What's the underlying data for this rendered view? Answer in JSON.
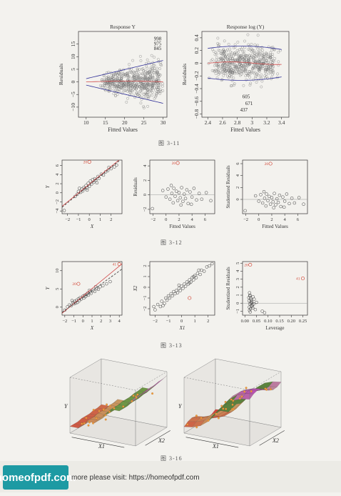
{
  "figures": [
    {
      "caption": "图 3-11"
    },
    {
      "caption": "图 3-12"
    },
    {
      "caption": "图 3-13"
    },
    {
      "caption": "图 3-16"
    }
  ],
  "footer": {
    "logo_text": "homeofpdf.com",
    "link_text": "more please visit: https://homeofpdf.com"
  },
  "colors": {
    "points": "#777777",
    "smooth": "#d14a4a",
    "bound": "#333399",
    "highlight": "#d24a3a"
  },
  "chart_data": [
    {
      "id": "fig311a",
      "type": "scatter",
      "title": "Response Y",
      "xlabel": "Fitted Values",
      "ylabel": "Residuals",
      "xlim": [
        8,
        31
      ],
      "ylim": [
        -14,
        20
      ],
      "xticks": [
        10,
        15,
        20,
        25,
        30
      ],
      "yticks": [
        -10,
        -5,
        0,
        5,
        10,
        15
      ],
      "annotations": [
        {
          "text": "998",
          "x": 28.6,
          "y": 16.5
        },
        {
          "text": "975",
          "x": 28.6,
          "y": 14.5
        },
        {
          "text": "845",
          "x": 28.6,
          "y": 12.6
        }
      ],
      "pattern": "funnel",
      "n_points": 560,
      "x_range": [
        10,
        30
      ],
      "spread": [
        1.5,
        10
      ]
    },
    {
      "id": "fig311b",
      "type": "scatter",
      "title": "Response log (Y)",
      "xlabel": "Fitted Values",
      "ylabel": "Residuals",
      "xlim": [
        2.32,
        3.5
      ],
      "ylim": [
        -0.85,
        0.5
      ],
      "xticks": [
        2.4,
        2.6,
        2.8,
        3.0,
        3.2,
        3.4
      ],
      "yticks": [
        -0.8,
        -0.6,
        -0.4,
        -0.2,
        0.0,
        0.2,
        0.4
      ],
      "annotations": [
        {
          "text": "605",
          "x": 2.92,
          "y": -0.55
        },
        {
          "text": "671",
          "x": 2.96,
          "y": -0.66
        },
        {
          "text": "437",
          "x": 2.89,
          "y": -0.76
        }
      ],
      "pattern": "constant",
      "n_points": 560,
      "x_range": [
        2.4,
        3.4
      ],
      "spread": [
        0.3,
        0.3
      ]
    },
    {
      "id": "fig312a",
      "type": "scatter",
      "xlabel": "X",
      "ylabel": "Y",
      "xlim": [
        -2.5,
        3.0
      ],
      "ylim": [
        -4.6,
        7.2
      ],
      "xticks": [
        -2,
        -1,
        0,
        1,
        2
      ],
      "yticks": [
        -4,
        -2,
        0,
        2,
        4,
        6
      ],
      "points": [
        [
          -2.3,
          -3.9
        ],
        [
          -1.3,
          -0.8
        ],
        [
          -1.1,
          -0.3
        ],
        [
          -1.0,
          0.3
        ],
        [
          -0.8,
          0.1
        ],
        [
          -0.7,
          0.8
        ],
        [
          -0.6,
          0.4
        ],
        [
          -0.5,
          1.2
        ],
        [
          -0.4,
          0.9
        ],
        [
          -0.3,
          1.6
        ],
        [
          -0.2,
          1.1
        ],
        [
          -0.1,
          2.1
        ],
        [
          0.0,
          1.4
        ],
        [
          0.1,
          2.6
        ],
        [
          0.2,
          1.9
        ],
        [
          0.3,
          2.9
        ],
        [
          0.4,
          2.3
        ],
        [
          0.5,
          3.1
        ],
        [
          0.6,
          2.8
        ],
        [
          0.8,
          3.6
        ],
        [
          0.9,
          3.2
        ],
        [
          1.1,
          4.1
        ],
        [
          1.3,
          3.9
        ],
        [
          1.5,
          4.6
        ],
        [
          1.7,
          4.9
        ],
        [
          2.0,
          5.3
        ],
        [
          2.3,
          5.7
        ],
        [
          2.5,
          6.1
        ],
        [
          -0.9,
          1.0
        ],
        [
          0.7,
          2.2
        ],
        [
          1.8,
          5.6
        ],
        [
          -0.2,
          0.6
        ]
      ],
      "highlight": [
        {
          "label": "20",
          "x": 0.0,
          "y": 6.8
        }
      ],
      "lines": [
        {
          "style": "solid",
          "color": "#d14a4a",
          "intercept": 1.9,
          "slope": 1.95
        },
        {
          "style": "dashed",
          "color": "#333333",
          "intercept": 1.7,
          "slope": 1.95
        }
      ]
    },
    {
      "id": "fig312b",
      "type": "scatter",
      "xlabel": "Fitted Values",
      "ylabel": "Residuals",
      "xlim": [
        -2.5,
        7.5
      ],
      "ylim": [
        -2.6,
        4.8
      ],
      "xticks": [
        -2,
        0,
        2,
        4,
        6
      ],
      "yticks": [
        -2,
        0,
        2,
        4
      ],
      "points": [
        [
          -2.1,
          -1.9
        ],
        [
          -0.5,
          0.6
        ],
        [
          0.0,
          -0.3
        ],
        [
          0.3,
          0.8
        ],
        [
          0.6,
          -0.6
        ],
        [
          0.9,
          0.2
        ],
        [
          1.1,
          -1.1
        ],
        [
          1.2,
          0.9
        ],
        [
          1.4,
          -0.2
        ],
        [
          1.6,
          0.5
        ],
        [
          1.8,
          -0.8
        ],
        [
          2.0,
          0.3
        ],
        [
          2.2,
          -0.4
        ],
        [
          2.4,
          1.0
        ],
        [
          2.6,
          -0.9
        ],
        [
          2.8,
          0.1
        ],
        [
          3.0,
          -0.5
        ],
        [
          3.2,
          0.7
        ],
        [
          3.4,
          -1.2
        ],
        [
          3.7,
          0.4
        ],
        [
          4.0,
          -0.3
        ],
        [
          4.3,
          0.9
        ],
        [
          4.7,
          -0.7
        ],
        [
          5.1,
          0.2
        ],
        [
          5.5,
          -0.6
        ],
        [
          6.2,
          0.3
        ],
        [
          6.9,
          -0.8
        ],
        [
          0.8,
          1.3
        ],
        [
          2.3,
          -1.4
        ],
        [
          3.9,
          -1.3
        ]
      ],
      "highlight": [
        {
          "label": "20",
          "x": 1.8,
          "y": 4.4
        }
      ],
      "hline": 0
    },
    {
      "id": "fig312c",
      "type": "scatter",
      "xlabel": "Fitted Values",
      "ylabel": "Studentized Residuals",
      "xlim": [
        -2.5,
        7.5
      ],
      "ylim": [
        -2.4,
        6.6
      ],
      "xticks": [
        -2,
        0,
        2,
        4,
        6
      ],
      "yticks": [
        0,
        2,
        4,
        6
      ],
      "points": [
        [
          -2.1,
          -1.9
        ],
        [
          -0.5,
          0.6
        ],
        [
          0.0,
          -0.3
        ],
        [
          0.3,
          0.8
        ],
        [
          0.6,
          -0.6
        ],
        [
          0.9,
          0.2
        ],
        [
          1.1,
          -1.1
        ],
        [
          1.2,
          0.9
        ],
        [
          1.4,
          -0.2
        ],
        [
          1.6,
          0.5
        ],
        [
          1.8,
          -0.8
        ],
        [
          2.0,
          0.3
        ],
        [
          2.2,
          -0.4
        ],
        [
          2.4,
          1.0
        ],
        [
          2.6,
          -0.9
        ],
        [
          2.8,
          0.1
        ],
        [
          3.0,
          -0.5
        ],
        [
          3.2,
          0.7
        ],
        [
          3.4,
          -1.2
        ],
        [
          3.7,
          0.4
        ],
        [
          4.0,
          -0.3
        ],
        [
          4.3,
          0.9
        ],
        [
          4.7,
          -0.7
        ],
        [
          5.1,
          0.2
        ],
        [
          5.5,
          -0.6
        ],
        [
          6.2,
          0.3
        ],
        [
          6.9,
          -0.8
        ],
        [
          0.8,
          1.3
        ],
        [
          2.3,
          -1.4
        ],
        [
          3.9,
          -1.3
        ]
      ],
      "highlight": [
        {
          "label": "20",
          "x": 1.8,
          "y": 6.0
        }
      ],
      "hline": 0
    },
    {
      "id": "fig313a",
      "type": "scatter",
      "xlabel": "X",
      "ylabel": "Y",
      "xlim": [
        -2.3,
        4.3
      ],
      "ylim": [
        -2.2,
        12.5
      ],
      "xticks": [
        -2,
        -1,
        0,
        1,
        2,
        3,
        4
      ],
      "yticks": [
        0,
        5,
        10
      ],
      "points": [
        [
          -2.0,
          -0.8
        ],
        [
          -1.7,
          0.1
        ],
        [
          -1.5,
          0.6
        ],
        [
          -1.3,
          0.4
        ],
        [
          -1.1,
          1.3
        ],
        [
          -1.0,
          0.9
        ],
        [
          -0.9,
          1.6
        ],
        [
          -0.7,
          1.9
        ],
        [
          -0.6,
          1.3
        ],
        [
          -0.5,
          2.3
        ],
        [
          -0.4,
          1.8
        ],
        [
          -0.3,
          2.6
        ],
        [
          -0.2,
          2.2
        ],
        [
          0.0,
          3.0
        ],
        [
          0.1,
          2.5
        ],
        [
          0.2,
          3.3
        ],
        [
          0.3,
          2.9
        ],
        [
          0.4,
          3.5
        ],
        [
          0.5,
          3.8
        ],
        [
          0.6,
          3.3
        ],
        [
          0.8,
          4.2
        ],
        [
          0.9,
          3.8
        ],
        [
          1.1,
          4.6
        ],
        [
          1.3,
          4.3
        ],
        [
          1.5,
          5.1
        ],
        [
          1.7,
          4.9
        ],
        [
          1.9,
          5.6
        ],
        [
          2.2,
          5.9
        ],
        [
          2.6,
          6.4
        ],
        [
          3.0,
          7.0
        ],
        [
          -0.8,
          1.1
        ],
        [
          0.7,
          4.6
        ],
        [
          1.4,
          5.6
        ],
        [
          -1.2,
          1.8
        ]
      ],
      "highlight": [
        {
          "label": "20",
          "x": -0.5,
          "y": 6.4
        },
        {
          "label": "41",
          "x": 4.0,
          "y": 11.8
        }
      ],
      "lines": [
        {
          "style": "solid",
          "color": "#d14a4a",
          "intercept": 3.05,
          "slope": 2.05
        },
        {
          "style": "dashed",
          "color": "#333333",
          "intercept": 2.7,
          "slope": 1.8
        }
      ]
    },
    {
      "id": "fig313b",
      "type": "scatter",
      "xlabel": "X1",
      "ylabel": "X2",
      "xlim": [
        -2.4,
        2.5
      ],
      "ylim": [
        -2.6,
        2.4
      ],
      "xticks": [
        -2,
        -1,
        0,
        1,
        2
      ],
      "yticks": [
        -2,
        -1,
        0,
        1,
        2
      ],
      "points": [
        [
          -2.0,
          -2.1
        ],
        [
          -1.8,
          -1.6
        ],
        [
          -1.6,
          -1.8
        ],
        [
          -1.5,
          -1.3
        ],
        [
          -1.3,
          -1.5
        ],
        [
          -1.2,
          -1.0
        ],
        [
          -1.1,
          -1.2
        ],
        [
          -1.0,
          -0.8
        ],
        [
          -0.9,
          -1.0
        ],
        [
          -0.8,
          -0.6
        ],
        [
          -0.7,
          -0.8
        ],
        [
          -0.6,
          -0.4
        ],
        [
          -0.5,
          -0.6
        ],
        [
          -0.4,
          -0.3
        ],
        [
          -0.3,
          -0.5
        ],
        [
          -0.2,
          -0.1
        ],
        [
          -0.1,
          -0.3
        ],
        [
          0.0,
          0.1
        ],
        [
          0.1,
          -0.1
        ],
        [
          0.2,
          0.3
        ],
        [
          0.3,
          0.1
        ],
        [
          0.4,
          0.5
        ],
        [
          0.5,
          0.3
        ],
        [
          0.6,
          0.7
        ],
        [
          0.7,
          0.5
        ],
        [
          0.8,
          0.9
        ],
        [
          0.9,
          0.7
        ],
        [
          1.0,
          1.1
        ],
        [
          1.1,
          0.9
        ],
        [
          1.2,
          1.3
        ],
        [
          1.4,
          1.2
        ],
        [
          1.5,
          1.6
        ],
        [
          1.7,
          1.5
        ],
        [
          1.9,
          1.9
        ],
        [
          2.1,
          2.0
        ],
        [
          -1.4,
          -1.7
        ],
        [
          -0.2,
          0.2
        ],
        [
          0.6,
          0.4
        ],
        [
          1.3,
          1.6
        ],
        [
          2.3,
          2.2
        ],
        [
          -2.1,
          -1.8
        ],
        [
          0.9,
          1.0
        ]
      ],
      "highlight": [
        {
          "label": "",
          "x": 0.6,
          "y": -1.0
        }
      ]
    },
    {
      "id": "fig313c",
      "type": "scatter",
      "xlabel": "Leverage",
      "ylabel": "Studentized Residuals",
      "xlim": [
        -0.01,
        0.27
      ],
      "ylim": [
        -1.5,
        5.2
      ],
      "xticks": [
        0.0,
        0.05,
        0.1,
        0.15,
        0.2,
        0.25
      ],
      "xticklabels": [
        "0.00",
        "0.05",
        "0.10",
        "0.15",
        "0.20",
        "0.25"
      ],
      "yticks": [
        -1,
        0,
        1,
        2,
        3,
        4,
        5
      ],
      "points": [
        [
          0.02,
          1.3
        ],
        [
          0.022,
          0.9
        ],
        [
          0.025,
          0.6
        ],
        [
          0.018,
          0.3
        ],
        [
          0.03,
          0.1
        ],
        [
          0.021,
          -0.1
        ],
        [
          0.028,
          -0.3
        ],
        [
          0.019,
          -0.5
        ],
        [
          0.024,
          -0.7
        ],
        [
          0.033,
          -0.2
        ],
        [
          0.027,
          0.4
        ],
        [
          0.035,
          0.8
        ],
        [
          0.02,
          -0.9
        ],
        [
          0.023,
          -1.1
        ],
        [
          0.031,
          -0.4
        ],
        [
          0.026,
          0.0
        ],
        [
          0.029,
          0.2
        ],
        [
          0.034,
          -0.6
        ],
        [
          0.04,
          0.5
        ],
        [
          0.045,
          -0.8
        ],
        [
          0.05,
          0.1
        ],
        [
          0.017,
          0.7
        ],
        [
          0.038,
          -0.1
        ],
        [
          0.075,
          -1.0
        ],
        [
          0.085,
          -1.2
        ],
        [
          0.022,
          1.0
        ]
      ],
      "highlight": [
        {
          "label": "20",
          "x": 0.023,
          "y": 4.8
        },
        {
          "label": "41",
          "x": 0.25,
          "y": 3.1
        }
      ],
      "hline": 0
    },
    {
      "id": "fig316a",
      "type": "surface",
      "xlabel": "X1",
      "ylabel": "X2",
      "zlabel": "Y",
      "style": "step"
    },
    {
      "id": "fig316b",
      "type": "surface",
      "xlabel": "X1",
      "ylabel": "X2",
      "zlabel": "Y",
      "style": "smooth"
    }
  ]
}
